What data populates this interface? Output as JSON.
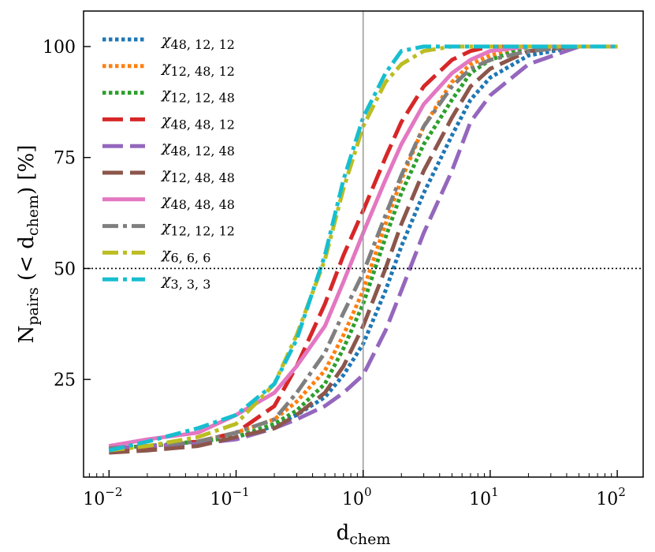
{
  "chart_data": {
    "type": "line",
    "title": "",
    "xscale": "log",
    "xlim": [
      0.0063,
      160
    ],
    "ylim": [
      3,
      108
    ],
    "x_ticks": [
      {
        "value": 0.01,
        "base": "10",
        "exp": "−2"
      },
      {
        "value": 0.1,
        "base": "10",
        "exp": "−1"
      },
      {
        "value": 1,
        "base": "10",
        "exp": "0"
      },
      {
        "value": 10,
        "base": "10",
        "exp": "1"
      },
      {
        "value": 100,
        "base": "10",
        "exp": "2"
      }
    ],
    "y_ticks": [
      {
        "value": 25,
        "label": "25"
      },
      {
        "value": 50,
        "label": "50"
      },
      {
        "value": 75,
        "label": "75"
      },
      {
        "value": 100,
        "label": "100"
      }
    ],
    "xlabel": {
      "main": "d",
      "sub": "chem"
    },
    "ylabel": {
      "main": "N",
      "sub": "pairs",
      "open": " (< d",
      "sub2": "chem",
      "close": ")  [%]"
    },
    "reference_lines": {
      "vertical_x": 1,
      "horizontal_y": 50
    },
    "x": [
      0.01,
      0.02,
      0.05,
      0.1,
      0.2,
      0.3,
      0.5,
      0.7,
      1,
      1.5,
      2,
      3,
      5,
      7,
      10,
      20,
      50,
      100
    ],
    "series": [
      {
        "name": "χ48,12,12",
        "sub": "48, 12, 12",
        "color": "#1f77b4",
        "dash": "dotted",
        "values": [
          9.5,
          10,
          11,
          12,
          14.5,
          17,
          21,
          26,
          33,
          45,
          55,
          67,
          80,
          88,
          93,
          98,
          100,
          100
        ]
      },
      {
        "name": "χ12,48,12",
        "sub": "12, 48, 12",
        "color": "#ff7f0e",
        "dash": "dotted",
        "values": [
          9.5,
          10,
          11,
          13,
          16,
          20,
          27,
          35,
          45,
          60,
          70,
          82,
          92,
          96,
          98,
          100,
          100,
          100
        ]
      },
      {
        "name": "χ12,12,48",
        "sub": "12, 12, 48",
        "color": "#2ca02c",
        "dash": "dotted",
        "values": [
          9.5,
          10,
          11,
          12,
          15,
          18,
          24,
          32,
          42,
          57,
          67,
          78,
          88,
          94,
          97,
          100,
          100,
          100
        ]
      },
      {
        "name": "χ48,48,12",
        "sub": "48, 48, 12",
        "color": "#d62728",
        "dash": "dashed",
        "values": [
          9,
          9.5,
          11,
          13,
          19,
          28,
          42,
          53,
          63,
          75,
          83,
          91,
          97,
          99,
          100,
          100,
          100,
          100
        ]
      },
      {
        "name": "χ48,12,48",
        "sub": "48, 12, 48",
        "color": "#9467bd",
        "dash": "dashed",
        "values": [
          9.5,
          10,
          10.5,
          11.5,
          14,
          16,
          19,
          22,
          26,
          36,
          45,
          58,
          72,
          83,
          89,
          96,
          100,
          100
        ]
      },
      {
        "name": "χ12,48,48",
        "sub": "12, 48, 48",
        "color": "#8c564b",
        "dash": "dashed",
        "values": [
          8.5,
          9,
          10,
          12,
          14,
          17,
          22,
          28,
          37,
          50,
          60,
          72,
          84,
          91,
          95,
          99,
          100,
          100
        ]
      },
      {
        "name": "χ48,48,48",
        "sub": "48, 48, 48",
        "color": "#e377c2",
        "dash": "solid",
        "values": [
          10,
          11.5,
          13,
          17,
          22,
          28,
          37,
          47,
          58,
          70,
          78,
          87,
          94,
          97,
          99,
          100,
          100,
          100
        ]
      },
      {
        "name": "χ12,12,12",
        "sub": "12, 12, 12",
        "color": "#7f7f7f",
        "dash": "dashdot",
        "values": [
          9.5,
          10,
          11,
          13,
          16,
          22,
          31,
          40,
          49,
          62,
          71,
          82,
          91,
          95,
          97,
          99,
          100,
          100
        ]
      },
      {
        "name": "χ6,6,6",
        "sub": "6, 6, 6",
        "color": "#bcbd22",
        "dash": "dashdot",
        "values": [
          9,
          10,
          12,
          15,
          24,
          35,
          52,
          68,
          82,
          92,
          96,
          99,
          100,
          100,
          100,
          100,
          100,
          100
        ]
      },
      {
        "name": "χ3,3,3",
        "sub": "3, 3, 3",
        "color": "#17becf",
        "dash": "dashdot",
        "values": [
          9,
          11,
          14,
          17,
          24,
          34,
          53,
          70,
          84,
          94,
          99,
          100,
          100,
          100,
          100,
          100,
          100,
          100
        ]
      }
    ],
    "legend": {
      "position": "upper-left",
      "symbol": "χ"
    }
  }
}
